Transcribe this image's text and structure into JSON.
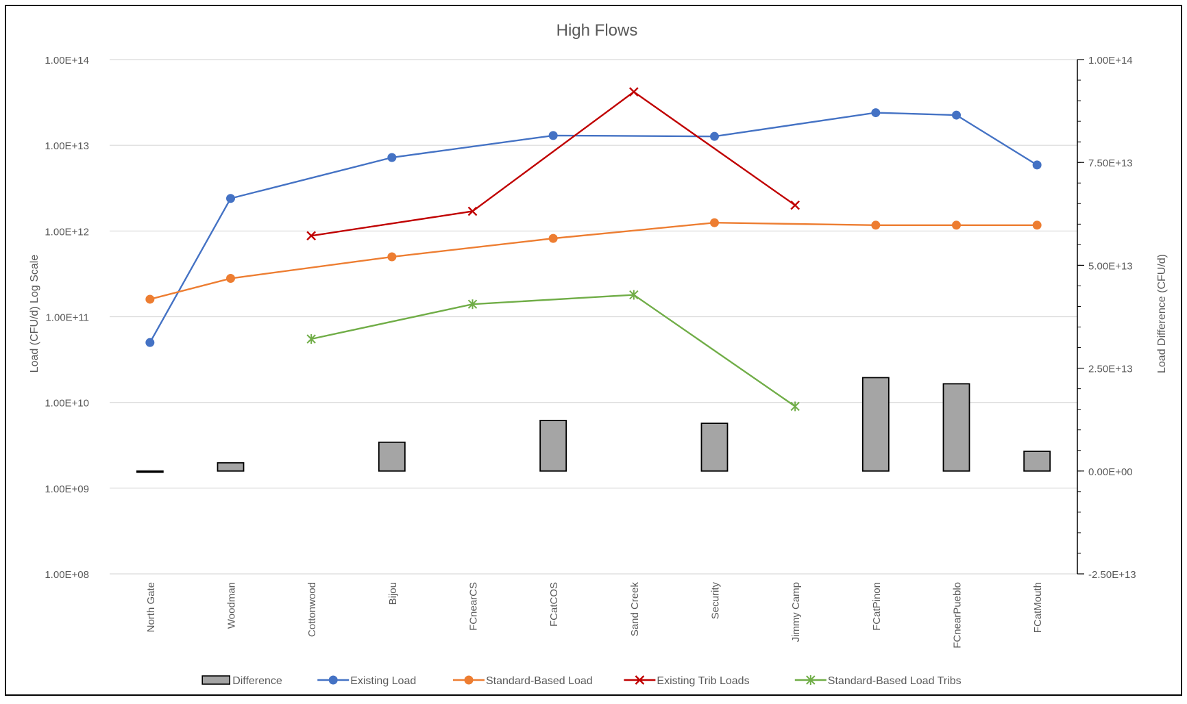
{
  "chart_data": {
    "type": "line",
    "title": "High Flows",
    "ylabel": "Load (CFU/d) Log Scale",
    "y2label": "Load Difference (CFU/d)",
    "yscale": "log",
    "ylim": [
      100000000,
      100000000000000
    ],
    "y2lim": [
      -25000000000000,
      100000000000000
    ],
    "yticks": [
      "1.00E+08",
      "1.00E+09",
      "1.00E+10",
      "1.00E+11",
      "1.00E+12",
      "1.00E+13",
      "1.00E+14"
    ],
    "y2ticks": [
      "-2.50E+13",
      "0.00E+00",
      "2.50E+13",
      "5.00E+13",
      "7.50E+13",
      "1.00E+14"
    ],
    "grid": true,
    "legend_position": "bottom",
    "categories": [
      "North Gate",
      "Woodman",
      "Cottonwood",
      "Bijou",
      "FCnearCS",
      "FCatCOS",
      "Sand Creek",
      "Security",
      "Jimmy Camp",
      "FCatPinon",
      "FCnearPueblo",
      "FCatMouth"
    ],
    "series": [
      {
        "name": "Difference",
        "type": "bar",
        "axis": "right",
        "color": "#a5a5a5",
        "values": [
          -300000000000,
          2000000000000,
          null,
          7000000000000,
          null,
          12300000000000,
          null,
          11600000000000,
          null,
          22700000000000,
          21200000000000,
          4800000000000
        ]
      },
      {
        "name": "Existing Load",
        "type": "line",
        "marker": "circle",
        "axis": "left",
        "color": "#4472c4",
        "values": [
          50000000000,
          2400000000000,
          null,
          7200000000000,
          null,
          13000000000000,
          null,
          12700000000000,
          null,
          24000000000000,
          22500000000000,
          5900000000000
        ]
      },
      {
        "name": "Standard-Based Load",
        "type": "line",
        "marker": "circle",
        "axis": "left",
        "color": "#ed7d31",
        "values": [
          160000000000,
          280000000000,
          null,
          500000000000,
          null,
          820000000000,
          null,
          1250000000000,
          null,
          1170000000000,
          1170000000000,
          1170000000000
        ]
      },
      {
        "name": "Existing Trib Loads",
        "type": "line",
        "marker": "x",
        "axis": "left",
        "color": "#c00000",
        "values": [
          null,
          null,
          880000000000,
          null,
          1700000000000,
          null,
          42000000000000,
          null,
          2000000000000,
          null,
          null,
          null
        ]
      },
      {
        "name": "Standard-Based Load Tribs",
        "type": "line",
        "marker": "star",
        "axis": "left",
        "color": "#70ad47",
        "values": [
          null,
          null,
          55000000000,
          null,
          140000000000,
          null,
          180000000000,
          null,
          9000000000,
          null,
          null,
          null
        ]
      }
    ]
  }
}
